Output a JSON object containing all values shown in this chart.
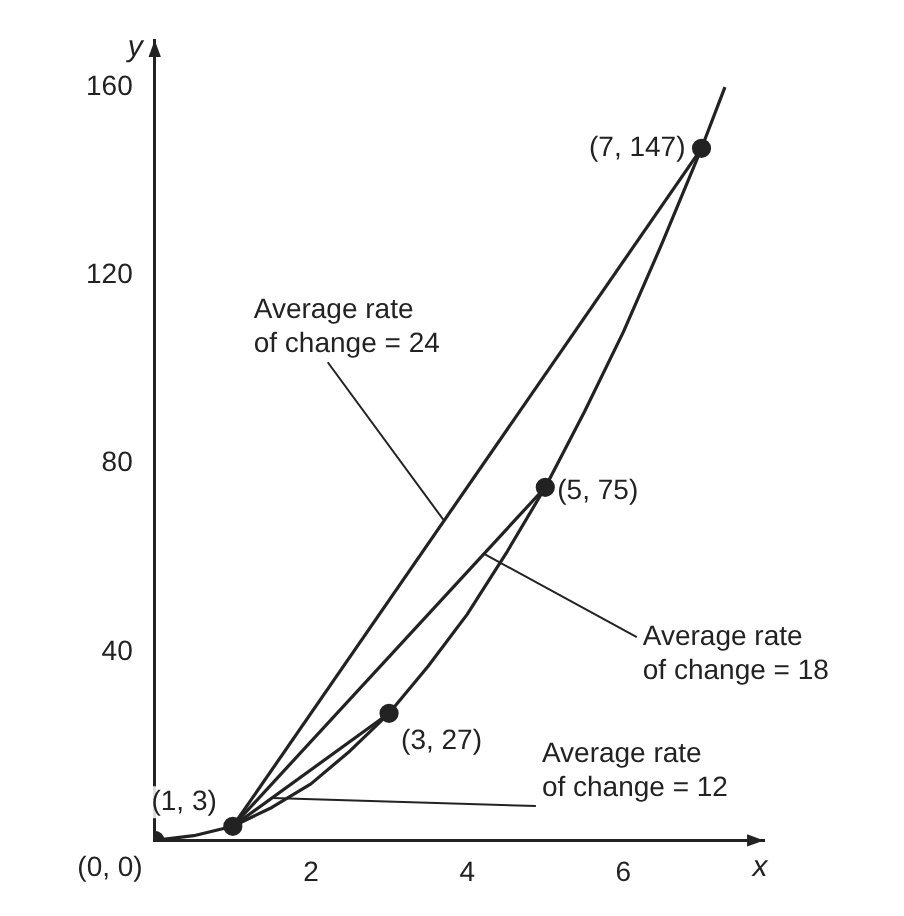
{
  "chart_data": {
    "type": "line",
    "xlabel": "x",
    "ylabel": "y",
    "xlim": [
      0,
      7.8
    ],
    "ylim": [
      0,
      170
    ],
    "xticks": [
      2,
      4,
      6
    ],
    "yticks": [
      40,
      80,
      120,
      160
    ],
    "grid": false,
    "legend": false,
    "series": [
      {
        "type": "line",
        "x": [
          0,
          0.5,
          1,
          1.5,
          2,
          2.5,
          3,
          3.5,
          4,
          4.5,
          5,
          5.5,
          6,
          6.5,
          7,
          7.3
        ],
        "values": [
          0,
          1,
          3,
          7,
          12,
          19,
          27,
          37,
          48,
          61,
          75,
          91,
          108,
          127,
          147,
          160
        ],
        "color": "#222222",
        "marker": "none"
      },
      {
        "type": "line",
        "x": [
          1,
          3
        ],
        "values": [
          3,
          27
        ],
        "color": "#222222",
        "marker": "none"
      },
      {
        "type": "line",
        "x": [
          1,
          5
        ],
        "values": [
          3,
          75
        ],
        "color": "#222222",
        "marker": "none"
      },
      {
        "type": "line",
        "x": [
          1,
          7
        ],
        "values": [
          3,
          147
        ],
        "color": "#222222",
        "marker": "none"
      },
      {
        "type": "scatter",
        "x": [
          0,
          1,
          3,
          5,
          7
        ],
        "values": [
          0,
          3,
          27,
          75,
          147
        ],
        "color": "#222222",
        "marker": "circle"
      }
    ],
    "annotations": [
      {
        "text": "(0, 0)",
        "x": 0,
        "y": 0
      },
      {
        "text": "(1, 3)",
        "x": 1,
        "y": 3
      },
      {
        "text": "(3, 27)",
        "x": 3,
        "y": 27
      },
      {
        "text": "(5, 75)",
        "x": 5,
        "y": 75
      },
      {
        "text": "(7, 147)",
        "x": 7,
        "y": 147
      },
      {
        "text": "Average rate\nof change = 24",
        "x": 3.7,
        "y": 68
      },
      {
        "text": "Average rate\nof change = 18",
        "x": 4.2,
        "y": 61
      },
      {
        "text": "Average rate\nof change = 12",
        "x": 1.5,
        "y": 9
      }
    ]
  }
}
